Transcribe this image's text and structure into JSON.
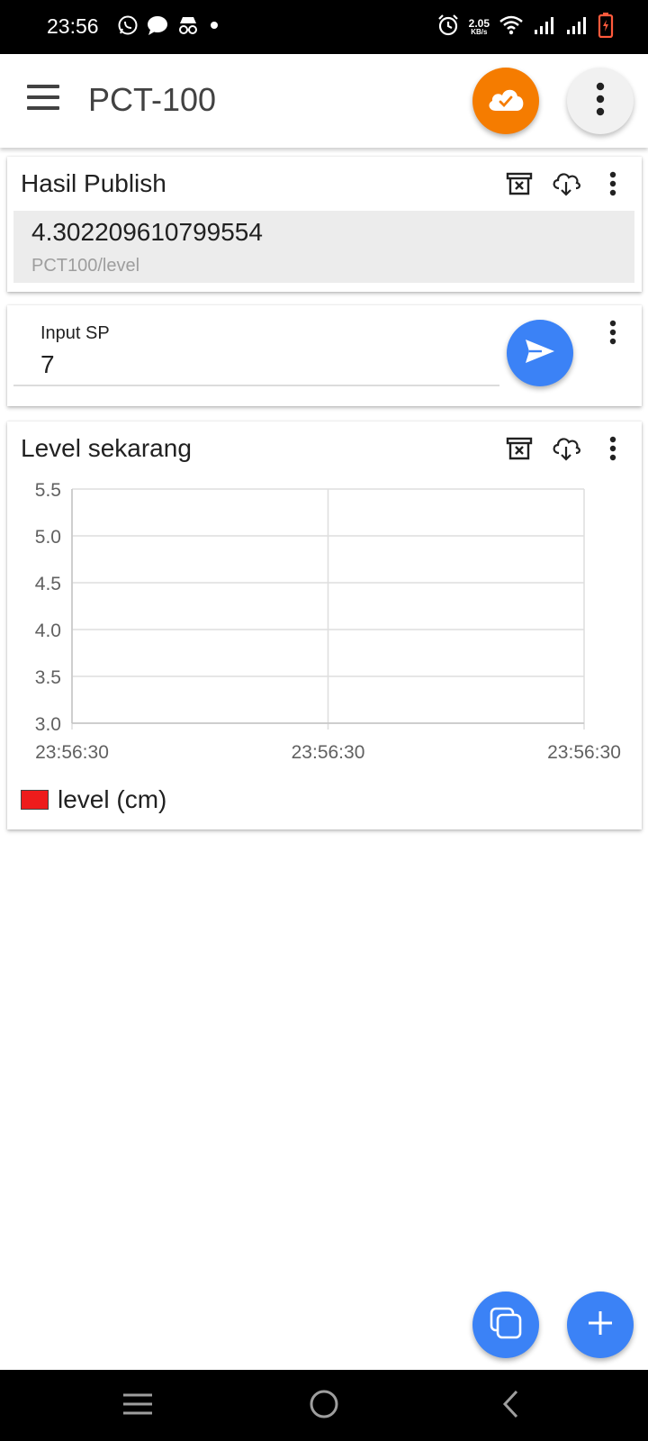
{
  "status_bar": {
    "time": "23:56",
    "net_speed_value": "2.05",
    "net_speed_unit": "KB/s",
    "left_icons": [
      "whatsapp-icon",
      "chat-icon",
      "incognito-icon",
      "dot-icon"
    ],
    "right_icons": [
      "alarm-icon",
      "net-speed",
      "wifi-icon",
      "signal-icon",
      "signal-icon",
      "battery-charging-icon"
    ]
  },
  "app_bar": {
    "title": "PCT-100",
    "connection_status_icon": "cloud-check-icon",
    "connection_color": "#f57c00"
  },
  "publish_card": {
    "title": "Hasil Publish",
    "value": "4.302209610799554",
    "topic": "PCT100/level"
  },
  "input_card": {
    "label": "Input SP",
    "value": "7"
  },
  "chart_card": {
    "title": "Level sekarang"
  },
  "chart_data": {
    "type": "line",
    "title": "",
    "xlabel": "",
    "ylabel": "",
    "x_tick_labels": [
      "23:56:30",
      "23:56:30",
      "23:56:30"
    ],
    "y_ticks": [
      "5.5",
      "5.0",
      "4.5",
      "4.0",
      "3.5",
      "3.0"
    ],
    "ylim": [
      3.0,
      5.5
    ],
    "grid": true,
    "series": [
      {
        "name": "level (cm)",
        "color": "#ee1c1c",
        "values": []
      }
    ],
    "legend_position": "bottom-left"
  },
  "colors": {
    "primary": "#3b82f6",
    "accent": "#f57c00"
  }
}
